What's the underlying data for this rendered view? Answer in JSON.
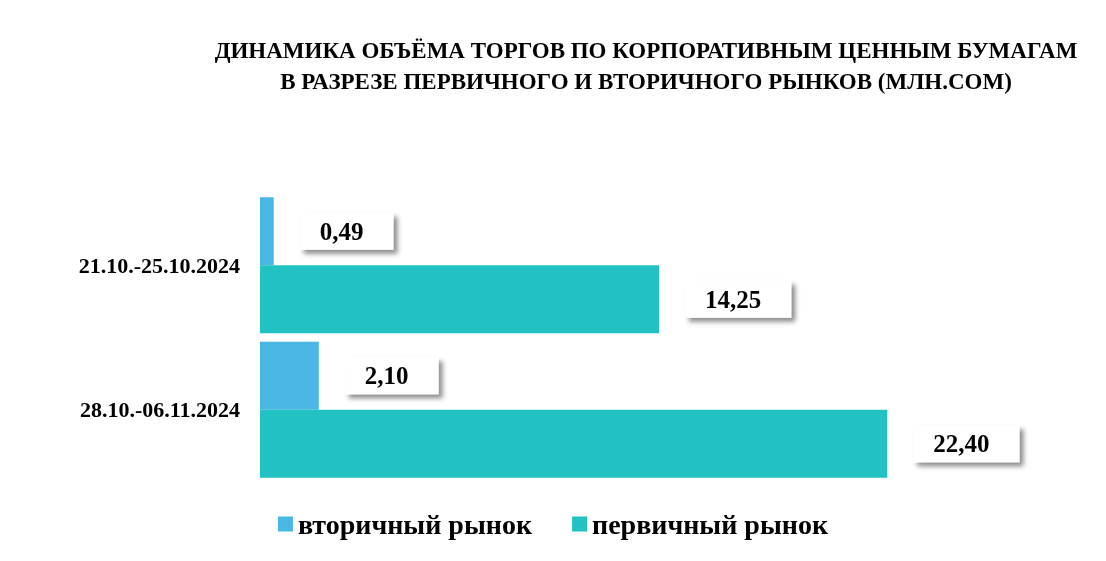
{
  "chart_data": {
    "type": "bar",
    "orientation": "horizontal",
    "title": "ДИНАМИКА ОБЪЁМА ТОРГОВ ПО КОРПОРАТИВНЫМ ЦЕННЫМ БУМАГАМ\nВ РАЗРЕЗЕ ПЕРВИЧНОГО И ВТОРИЧНОГО РЫНКОВ (МЛН.СОМ)",
    "categories": [
      "21.10.-25.10.2024",
      "28.10.-06.11.2024"
    ],
    "series": [
      {
        "name": "вторичный рынок",
        "color": "#4ab6e4",
        "values": [
          0.49,
          2.1
        ],
        "value_labels": [
          "0,49",
          "2,10"
        ]
      },
      {
        "name": "первичный рынок",
        "color": "#22c2c2",
        "values": [
          14.25,
          22.4
        ],
        "value_labels": [
          "14,25",
          "22,40"
        ]
      }
    ],
    "tick_labels": "y",
    "legend": "bottom"
  }
}
